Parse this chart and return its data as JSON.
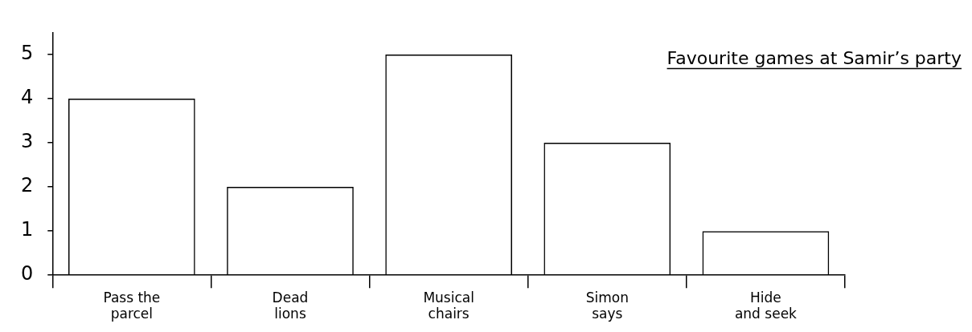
{
  "chart_data": {
    "type": "bar",
    "title": "Favourite games at Samir’s party",
    "categories": [
      "Pass the\nparcel",
      "Dead\nlions",
      "Musical\nchairs",
      "Simon\nsays",
      "Hide\nand seek"
    ],
    "values": [
      4,
      2,
      5,
      3,
      1
    ],
    "color": "#000000",
    "ylim": [
      0,
      5.5
    ],
    "yticks": [
      0,
      1,
      2,
      3,
      4,
      5
    ],
    "grid": false,
    "legend": false
  }
}
